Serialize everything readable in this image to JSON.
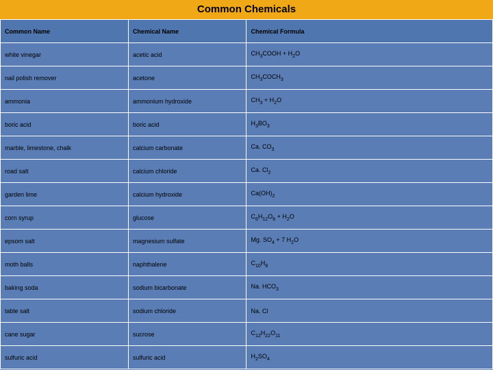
{
  "title": "Common Chemicals",
  "background_color": "#5a7db5",
  "header_bg": "#f0a817",
  "header_text_color": "#000000",
  "cell_border_color": "#ffffff",
  "th_bg": "#4f76ae",
  "td_bg": "#5a7db5",
  "font_family": "Arial, sans-serif",
  "title_fontsize": 15,
  "cell_fontsize": 9,
  "columns": [
    {
      "label": "Common Name",
      "width_pct": 26
    },
    {
      "label": "Chemical Name",
      "width_pct": 24
    },
    {
      "label": "Chemical Formula",
      "width_pct": 50
    }
  ],
  "rows": [
    {
      "common": "white vinegar",
      "chemical": "acetic acid",
      "formula_html": "CH<sub>3</sub>COOH + H<sub>2</sub>O"
    },
    {
      "common": "nail polish remover",
      "chemical": "acetone",
      "formula_html": "CH<sub>3</sub>COCH<sub>3</sub>"
    },
    {
      "common": "ammonia",
      "chemical": "ammonium hydroxide",
      "formula_html": "CH<sub>3</sub> + H<sub>2</sub>O"
    },
    {
      "common": "boric acid",
      "chemical": "boric acid",
      "formula_html": "H<sub>3</sub>BO<sub>3</sub>"
    },
    {
      "common": "marble, limestone, chalk",
      "chemical": "calcium carbonate",
      "formula_html": "Ca. CO<sub>3</sub>"
    },
    {
      "common": "road salt",
      "chemical": "calcium chloride",
      "formula_html": "Ca. Cl<sub>2</sub>"
    },
    {
      "common": "garden lime",
      "chemical": "calcium hydroxide",
      "formula_html": "Ca(OH)<sub>2</sub>"
    },
    {
      "common": "corn syrup",
      "chemical": "glucose",
      "formula_html": "C<sub>6</sub>H<sub>12</sub>O<sub>6</sub> + H<sub>2</sub>O"
    },
    {
      "common": "epsom salt",
      "chemical": "magnesium sulfate",
      "formula_html": "Mg. SO<sub>4</sub> + 7 H<sub>2</sub>O"
    },
    {
      "common": "moth balls",
      "chemical": "naphthalene",
      "formula_html": "C<sub>10</sub>H<sub>8</sub>"
    },
    {
      "common": "baking soda",
      "chemical": "sodium bicarbonate",
      "formula_html": "Na. HCO<sub>3</sub>"
    },
    {
      "common": "table salt",
      "chemical": "sodium chloride",
      "formula_html": "Na. Cl"
    },
    {
      "common": "cane sugar",
      "chemical": "sucrose",
      "formula_html": "C<sub>12</sub>H<sub>22</sub>O<sub>11</sub>"
    },
    {
      "common": "sulfuric acid",
      "chemical": "sulfuric acid",
      "formula_html": "H<sub>2</sub>SO<sub>4</sub>"
    }
  ]
}
